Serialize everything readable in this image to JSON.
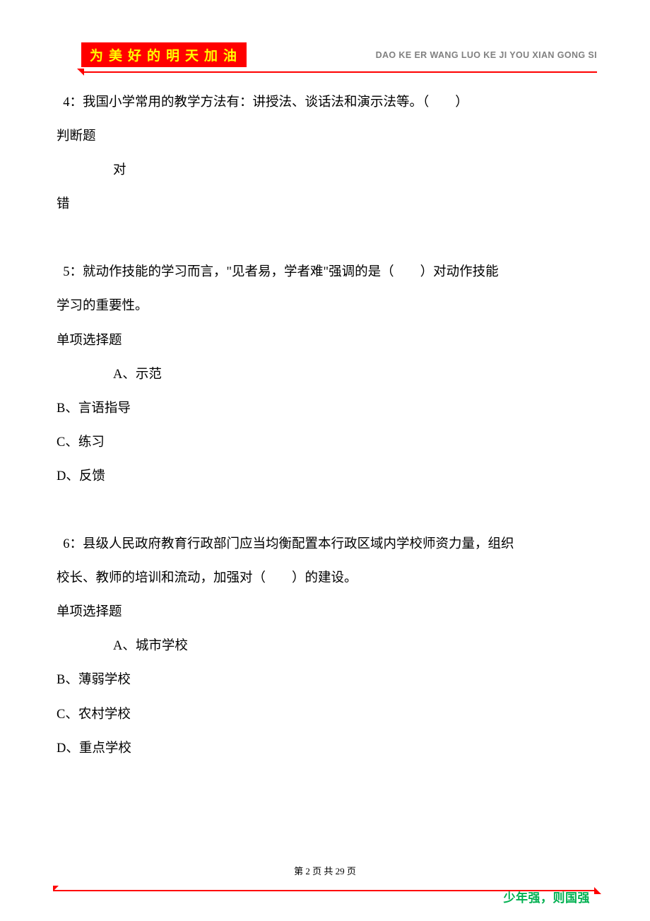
{
  "header": {
    "banner_text": "为美好的明天加油",
    "pinyin_text": "DAO KE ER WANG LUO KE JI YOU XIAN GONG SI"
  },
  "questions": {
    "q4": {
      "text": "4：我国小学常用的教学方法有：讲授法、谈话法和演示法等。（　　）",
      "type_label": "判断题",
      "option_true": "对",
      "option_false": "错"
    },
    "q5": {
      "text_line1": "5：就动作技能的学习而言，\"见者易，学者难\"强调的是（　　）对动作技能",
      "text_line2": "学习的重要性。",
      "type_label": "单项选择题",
      "option_a": "A、示范",
      "option_b": "B、言语指导",
      "option_c": "C、练习",
      "option_d": "D、反馈"
    },
    "q6": {
      "text_line1": "6：县级人民政府教育行政部门应当均衡配置本行政区域内学校师资力量，组织",
      "text_line2": "校长、教师的培训和流动，加强对（　　）的建设。",
      "type_label": "单项选择题",
      "option_a": "A、城市学校",
      "option_b": "B、薄弱学校",
      "option_c": "C、农村学校",
      "option_d": "D、重点学校"
    }
  },
  "footer": {
    "page_prefix": "第 ",
    "page_current": "2",
    "page_mid": " 页 共 ",
    "page_total": "29",
    "page_suffix": " 页",
    "slogan": "少年强，则国强"
  }
}
